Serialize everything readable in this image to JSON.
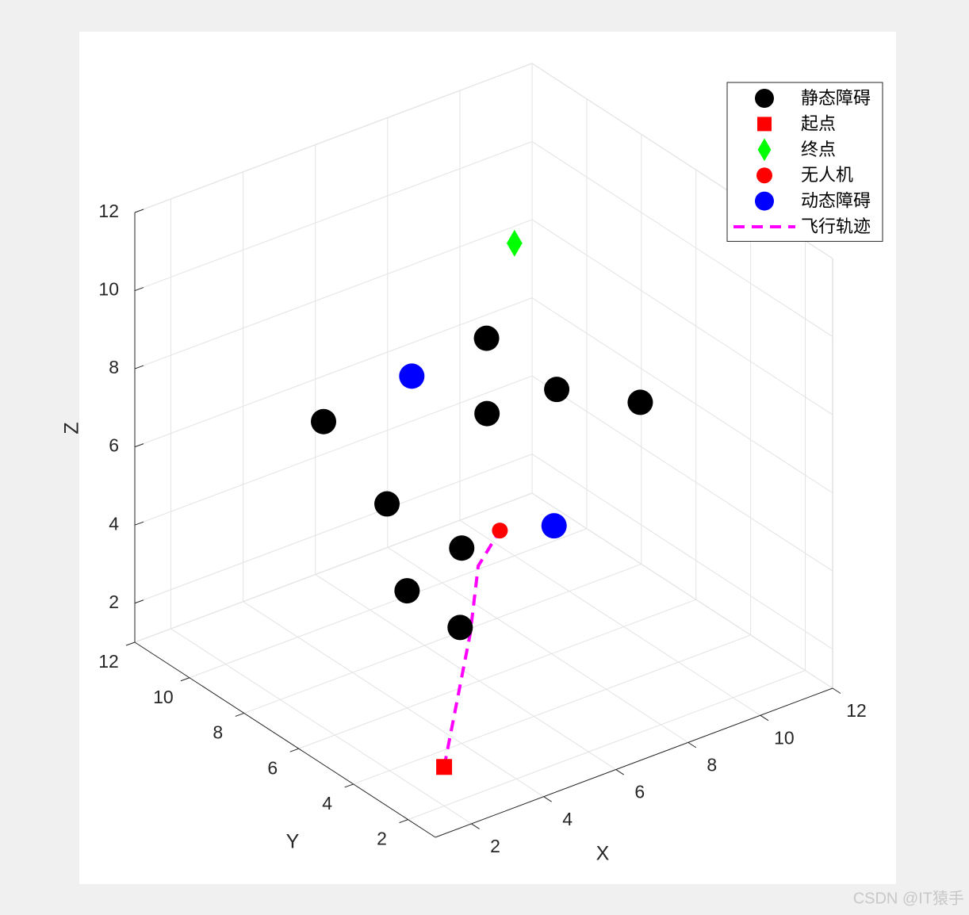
{
  "chart_data": {
    "type": "scatter3",
    "xlabel": "X",
    "ylabel": "Y",
    "zlabel": "Z",
    "xlim": [
      1,
      12
    ],
    "ylim": [
      1,
      12
    ],
    "zlim": [
      1,
      12
    ],
    "xticks": [
      2,
      4,
      6,
      8,
      10,
      12
    ],
    "yticks": [
      2,
      4,
      6,
      8,
      10,
      12
    ],
    "zticks": [
      2,
      4,
      6,
      8,
      10,
      12
    ],
    "grid": true,
    "legend_position": "northeast",
    "series": [
      {
        "name": "静态障碍",
        "color": "#000000",
        "marker": "o",
        "size": 16,
        "x": [
          6.2,
          8.9,
          9.7,
          3.2,
          4.7,
          4.2,
          4.0,
          4.0,
          3.2
        ],
        "y": [
          6,
          7,
          5,
          8,
          4,
          7,
          4,
          6,
          3
        ],
        "z": [
          9.7,
          7.0,
          7.3,
          7.7,
          9.2,
          5.7,
          6.0,
          4.0,
          4.7
        ]
      },
      {
        "name": "起点",
        "color": "#ff0000",
        "marker": "s",
        "size": 10,
        "x": [
          2
        ],
        "y": [
          2
        ],
        "z": [
          2
        ]
      },
      {
        "name": "终点",
        "color": "#00ff00",
        "marker": "d",
        "size": 17,
        "x": [
          10
        ],
        "y": [
          10
        ],
        "z": [
          9
        ]
      },
      {
        "name": "无人机",
        "color": "#ff0000",
        "marker": "o",
        "size": 10,
        "x": [
          4.3
        ],
        "y": [
          3
        ],
        "z": [
          6.8
        ]
      },
      {
        "name": "动态障碍",
        "color": "#0000ff",
        "marker": "o",
        "size": 16,
        "x": [
          6.4,
          5.8
        ],
        "y": [
          9,
          3
        ],
        "z": [
          7.3,
          6.4
        ]
      },
      {
        "name": "飞行轨迹",
        "color": "#ff00ff",
        "marker": "--",
        "x": [
          2,
          3.1,
          3.7,
          4.3
        ],
        "y": [
          2,
          2.5,
          3,
          3
        ],
        "z": [
          2,
          4.8,
          6.1,
          6.8
        ]
      }
    ],
    "watermark": "CSDN @IT猿手"
  }
}
